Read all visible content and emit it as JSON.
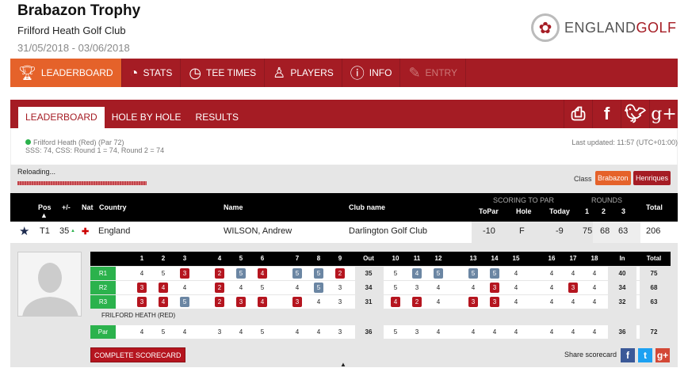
{
  "header": {
    "title": "Brabazon Trophy",
    "club": "Frilford Heath Golf Club",
    "dates": "31/05/2018 - 03/06/2018",
    "logo_text_a": "ENGLAND",
    "logo_text_b": "GOLF"
  },
  "nav": [
    {
      "label": "LEADERBOARD",
      "icon": "trophy-icon"
    },
    {
      "label": "STATS",
      "icon": "pie-chart-icon"
    },
    {
      "label": "TEE TIMES",
      "icon": "clock-icon"
    },
    {
      "label": "PLAYERS",
      "icon": "user-icon"
    },
    {
      "label": "INFO",
      "icon": "info-icon"
    },
    {
      "label": "ENTRY",
      "icon": "pencil-icon"
    }
  ],
  "tabs": [
    "LEADERBOARD",
    "HOLE BY HOLE",
    "RESULTS"
  ],
  "info": {
    "course": "Frilford Heath (Red) (Par 72)",
    "sss": "SSS: 74, CSS: Round 1 = 74, Round 2 = 74",
    "updated": "Last updated: 11:57 (UTC+01:00)"
  },
  "status": {
    "reloading": "Reloading...",
    "class_label": "Class",
    "classes": [
      "Brabazon",
      "Henriques"
    ],
    "colors": {
      "brabazon": "#e5622a",
      "henriques": "#a51c24"
    }
  },
  "columns": {
    "pos": "Pos",
    "plusminus": "+/-",
    "nat": "Nat",
    "country": "Country",
    "name": "Name",
    "club": "Club name",
    "scoring": "SCORING TO PAR",
    "topar": "ToPar",
    "hole": "Hole",
    "today": "Today",
    "rounds": "ROUNDS",
    "r1": "1",
    "r2": "2",
    "r3": "3",
    "total": "Total"
  },
  "player": {
    "pos": "T1",
    "move": "35",
    "country": "England",
    "name": "WILSON, Andrew",
    "club": "Darlington Golf Club",
    "topar": "-10",
    "hole": "F",
    "today": "-9",
    "r1": "75",
    "r2": "68",
    "r3": "63",
    "total": "206"
  },
  "scorecard": {
    "holes": [
      "1",
      "2",
      "3",
      "4",
      "5",
      "6",
      "7",
      "8",
      "9",
      "Out",
      "10",
      "11",
      "12",
      "13",
      "14",
      "15",
      "16",
      "17",
      "18",
      "In",
      "Total"
    ],
    "rounds": [
      {
        "label": "R1",
        "scores": [
          4,
          5,
          3,
          2,
          5,
          4,
          5,
          5,
          2,
          35,
          5,
          4,
          5,
          5,
          5,
          4,
          4,
          4,
          4,
          40,
          75
        ]
      },
      {
        "label": "R2",
        "scores": [
          3,
          4,
          4,
          2,
          4,
          5,
          4,
          5,
          3,
          34,
          5,
          3,
          4,
          4,
          3,
          4,
          4,
          3,
          4,
          34,
          68
        ]
      },
      {
        "label": "R3",
        "scores": [
          3,
          4,
          5,
          2,
          3,
          4,
          3,
          4,
          3,
          31,
          4,
          2,
          4,
          3,
          3,
          4,
          4,
          4,
          4,
          32,
          63
        ]
      }
    ],
    "course_name": "FRILFORD HEATH (RED)",
    "par": {
      "label": "Par",
      "scores": [
        4,
        5,
        4,
        3,
        4,
        5,
        4,
        4,
        3,
        36,
        5,
        3,
        4,
        4,
        4,
        4,
        4,
        4,
        4,
        36,
        72
      ]
    },
    "colors": {
      "under_par": "#b5151f",
      "over_par": "#6b86a3"
    }
  },
  "footer": {
    "complete": "COMPLETE SCORECARD",
    "share": "Share scorecard"
  }
}
